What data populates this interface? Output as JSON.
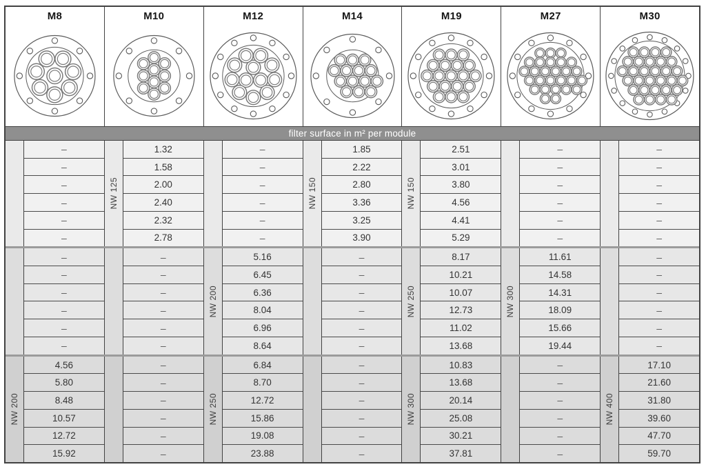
{
  "band_label": "filter surface in m² per module",
  "dash": "–",
  "colors": {
    "band_bg": "#8f8f8f",
    "band_text": "#ffffff",
    "grid_line": "#414141",
    "group_separator": "#9b9b9b",
    "group1_bg": "#f1f1f1",
    "group2_bg": "#e7e7e7",
    "group3_bg": "#dcdcdc",
    "value_text": "#333333",
    "diagram_line": "#5a5a5a",
    "tube_line": "#7a7a7a"
  },
  "modules": [
    {
      "name": "M8",
      "bolt_count": 8,
      "tube_count": 8,
      "outer_r": 59,
      "inner_r": 42,
      "layout": {
        "type": "rings",
        "rings": [
          {
            "n": 1,
            "R": 0,
            "a0": 0
          },
          {
            "n": 7,
            "R": 2.305,
            "a0": 64
          }
        ]
      }
    },
    {
      "name": "M10",
      "bolt_count": 8,
      "tube_count": 10,
      "outer_r": 59,
      "inner_r": 38,
      "layout": {
        "type": "rows",
        "rows": [
          3,
          4,
          3
        ],
        "offs": [
          0,
          0,
          0
        ],
        "rotate": true
      }
    },
    {
      "name": "M12",
      "bolt_count": 12,
      "tube_count": 12,
      "outer_r": 63,
      "inner_r": 45,
      "layout": {
        "type": "rings",
        "rings": [
          {
            "n": 3,
            "R": 1.155,
            "a0": 90
          },
          {
            "n": 9,
            "R": 2.924,
            "a0": 70
          }
        ]
      }
    },
    {
      "name": "M14",
      "bolt_count": 8,
      "tube_count": 14,
      "outer_r": 61,
      "inner_r": 38,
      "layout": {
        "type": "rows",
        "rows": [
          3,
          4,
          4,
          3
        ],
        "offs": [
          0,
          0,
          1,
          1
        ]
      }
    },
    {
      "name": "M19",
      "bolt_count": 12,
      "tube_count": 19,
      "outer_r": 63,
      "inner_r": 47,
      "layout": {
        "type": "rows",
        "rows": [
          3,
          4,
          5,
          4,
          3
        ],
        "offs": [
          0,
          0,
          0,
          0,
          0
        ]
      }
    },
    {
      "name": "M27",
      "bolt_count": 12,
      "tube_count": 27,
      "outer_r": 63,
      "inner_r": 49,
      "layout": {
        "type": "rows",
        "rows": [
          3,
          5,
          6,
          6,
          5,
          2
        ],
        "offs": [
          0,
          0,
          0,
          1,
          1,
          0
        ]
      }
    },
    {
      "name": "M30",
      "bolt_count": 16,
      "tube_count": 30,
      "outer_r": 64,
      "inner_r": 51,
      "layout": {
        "type": "rows",
        "rows": [
          4,
          5,
          6,
          6,
          5,
          4
        ],
        "offs": [
          0,
          0,
          0,
          1,
          1,
          1
        ]
      }
    }
  ],
  "groups": [
    {
      "columns": [
        {
          "nw": "",
          "values": [
            "–",
            "–",
            "–",
            "–",
            "–",
            "–"
          ]
        },
        {
          "nw": "NW 125",
          "values": [
            "1.32",
            "1.58",
            "2.00",
            "2.40",
            "2.32",
            "2.78"
          ]
        },
        {
          "nw": "",
          "values": [
            "–",
            "–",
            "–",
            "–",
            "–",
            "–"
          ]
        },
        {
          "nw": "NW 150",
          "values": [
            "1.85",
            "2.22",
            "2.80",
            "3.36",
            "3.25",
            "3.90"
          ]
        },
        {
          "nw": "NW 150",
          "values": [
            "2.51",
            "3.01",
            "3.80",
            "4.56",
            "4.41",
            "5.29"
          ]
        },
        {
          "nw": "",
          "values": [
            "–",
            "–",
            "–",
            "–",
            "–",
            "–"
          ]
        },
        {
          "nw": "",
          "values": [
            "–",
            "–",
            "–",
            "–",
            "–",
            "–"
          ]
        }
      ]
    },
    {
      "columns": [
        {
          "nw": "",
          "values": [
            "–",
            "–",
            "–",
            "–",
            "–",
            "–"
          ]
        },
        {
          "nw": "",
          "values": [
            "–",
            "–",
            "–",
            "–",
            "–",
            "–"
          ]
        },
        {
          "nw": "NW 200",
          "values": [
            "5.16",
            "6.45",
            "6.36",
            "8.04",
            "6.96",
            "8.64"
          ]
        },
        {
          "nw": "",
          "values": [
            "–",
            "–",
            "–",
            "–",
            "–",
            "–"
          ]
        },
        {
          "nw": "NW 250",
          "values": [
            "8.17",
            "10.21",
            "10.07",
            "12.73",
            "11.02",
            "13.68"
          ]
        },
        {
          "nw": "NW 300",
          "values": [
            "11.61",
            "14.58",
            "14.31",
            "18.09",
            "15.66",
            "19.44"
          ]
        },
        {
          "nw": "",
          "values": [
            "–",
            "–",
            "–",
            "–",
            "–",
            "–"
          ]
        }
      ]
    },
    {
      "columns": [
        {
          "nw": "NW 200",
          "values": [
            "4.56",
            "5.80",
            "8.48",
            "10.57",
            "12.72",
            "15.92"
          ]
        },
        {
          "nw": "",
          "values": [
            "–",
            "–",
            "–",
            "–",
            "–",
            "–"
          ]
        },
        {
          "nw": "NW 250",
          "values": [
            "6.84",
            "8.70",
            "12.72",
            "15.86",
            "19.08",
            "23.88"
          ]
        },
        {
          "nw": "",
          "values": [
            "–",
            "–",
            "–",
            "–",
            "–",
            "–"
          ]
        },
        {
          "nw": "NW 300",
          "values": [
            "10.83",
            "13.68",
            "20.14",
            "25.08",
            "30.21",
            "37.81"
          ]
        },
        {
          "nw": "",
          "values": [
            "–",
            "–",
            "–",
            "–",
            "–",
            "–"
          ]
        },
        {
          "nw": "NW 400",
          "values": [
            "17.10",
            "21.60",
            "31.80",
            "39.60",
            "47.70",
            "59.70"
          ]
        }
      ]
    }
  ]
}
